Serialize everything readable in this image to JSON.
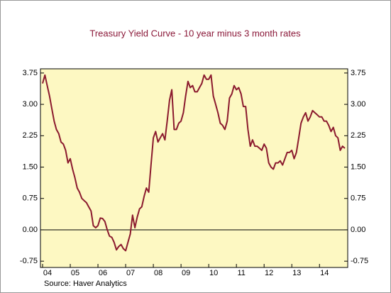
{
  "chart_data": {
    "type": "line",
    "title": "Treasury Yield Curve - 10 year minus 3 month rates",
    "source": "Source: Haver Analytics",
    "categories": [
      "04",
      null,
      null,
      null,
      null,
      null,
      null,
      null,
      null,
      null,
      null,
      null,
      "05",
      null,
      null,
      null,
      null,
      null,
      null,
      null,
      null,
      null,
      null,
      null,
      "06",
      null,
      null,
      null,
      null,
      null,
      null,
      null,
      null,
      null,
      null,
      null,
      "07",
      null,
      null,
      null,
      null,
      null,
      null,
      null,
      null,
      null,
      null,
      null,
      "08",
      null,
      null,
      null,
      null,
      null,
      null,
      null,
      null,
      null,
      null,
      null,
      "09",
      null,
      null,
      null,
      null,
      null,
      null,
      null,
      null,
      null,
      null,
      null,
      "10",
      null,
      null,
      null,
      null,
      null,
      null,
      null,
      null,
      null,
      null,
      null,
      "11",
      null,
      null,
      null,
      null,
      null,
      null,
      null,
      null,
      null,
      null,
      null,
      "12",
      null,
      null,
      null,
      null,
      null,
      null,
      null,
      null,
      null,
      null,
      null,
      "13",
      null,
      null,
      null,
      null,
      null,
      null,
      null,
      null,
      null,
      null,
      null,
      "14",
      null,
      null,
      null,
      null,
      null,
      null,
      null,
      null,
      null,
      null,
      null
    ],
    "values": [
      3.5,
      3.7,
      3.45,
      3.2,
      2.9,
      2.6,
      2.4,
      2.3,
      2.1,
      2.05,
      1.9,
      1.6,
      1.7,
      1.45,
      1.25,
      1.0,
      0.9,
      0.75,
      0.7,
      0.65,
      0.55,
      0.45,
      0.1,
      0.05,
      0.1,
      0.28,
      0.27,
      0.2,
      0.0,
      -0.15,
      -0.18,
      -0.3,
      -0.48,
      -0.4,
      -0.35,
      -0.45,
      -0.5,
      -0.3,
      -0.1,
      0.35,
      0.05,
      0.3,
      0.5,
      0.55,
      0.8,
      1.0,
      0.9,
      1.55,
      2.2,
      2.35,
      2.1,
      2.2,
      2.3,
      2.15,
      2.6,
      3.1,
      3.35,
      2.4,
      2.4,
      2.55,
      2.6,
      2.8,
      3.2,
      3.55,
      3.4,
      3.45,
      3.3,
      3.3,
      3.4,
      3.5,
      3.7,
      3.6,
      3.6,
      3.7,
      3.2,
      3.0,
      2.8,
      2.55,
      2.5,
      2.4,
      2.6,
      3.15,
      3.25,
      3.45,
      3.35,
      3.4,
      3.25,
      2.95,
      2.95,
      2.4,
      2.0,
      2.15,
      2.0,
      2.0,
      1.95,
      1.9,
      2.05,
      1.95,
      1.6,
      1.5,
      1.45,
      1.6,
      1.6,
      1.65,
      1.55,
      1.7,
      1.85,
      1.85,
      1.9,
      1.7,
      1.85,
      2.2,
      2.55,
      2.7,
      2.8,
      2.6,
      2.7,
      2.85,
      2.8,
      2.75,
      2.7,
      2.7,
      2.6,
      2.6,
      2.5,
      2.35,
      2.45,
      2.25,
      2.2,
      1.9,
      2.0,
      1.95
    ],
    "color": "#8b1a2e",
    "ylim": [
      -0.9,
      3.85
    ],
    "yticks": [
      {
        "value": -0.75,
        "label": "-0.75"
      },
      {
        "value": 0,
        "label": "0.00"
      },
      {
        "value": 0.75,
        "label": "0.75"
      },
      {
        "value": 1.5,
        "label": "1.50"
      },
      {
        "value": 2.25,
        "label": "2.25"
      },
      {
        "value": 3,
        "label": "3.00"
      },
      {
        "value": 3.75,
        "label": "3.75"
      }
    ],
    "hline": 0
  }
}
